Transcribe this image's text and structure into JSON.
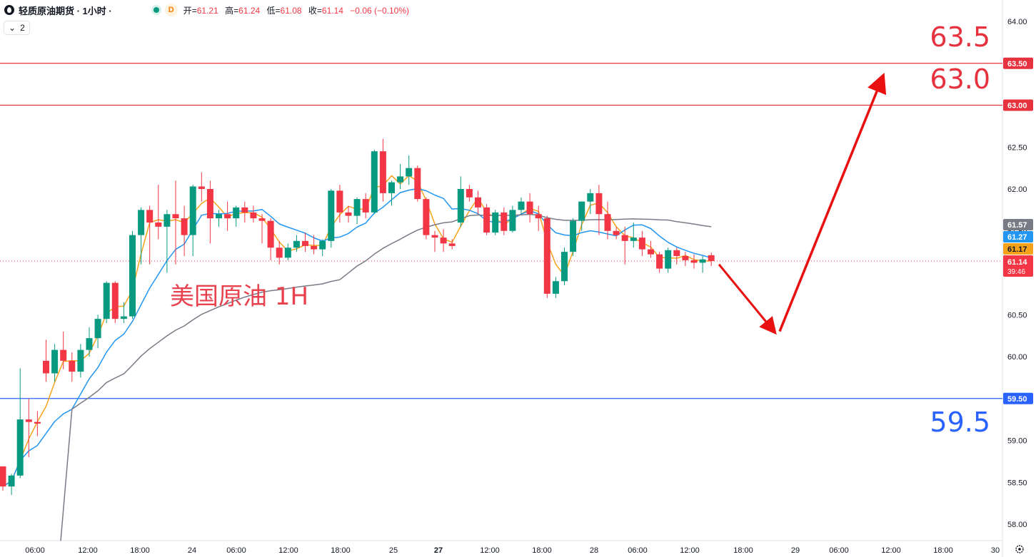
{
  "header": {
    "symbol_title": "轻质原油期货 · 1小时 ·",
    "badge_letter": "D",
    "ohlc": {
      "open_label": "开=",
      "open": "61.21",
      "high_label": "高=",
      "high": "61.24",
      "low_label": "低=",
      "low": "61.08",
      "close_label": "收=",
      "close": "61.14",
      "change": "−0.06 (−0.10%)"
    }
  },
  "indicators_toggle": {
    "count": "2"
  },
  "annotations": {
    "chart_label": "美国原油 1H",
    "target_high": "63.5",
    "target_mid": "63.0",
    "target_low": "59.5"
  },
  "price_tags": {
    "ma_slow": "61.57",
    "ma_mid": "61.27",
    "ma_fast": "61.17",
    "last_price": "61.14",
    "countdown": "39:46",
    "level_6350": "63.50",
    "level_6300": "63.00",
    "level_5950": "59.50"
  },
  "colors": {
    "up": "#089981",
    "down": "#f23645",
    "ma_fast": "#f7a21b",
    "ma_mid": "#2196f3",
    "ma_slow": "#787b86",
    "resistance": "#e5323e",
    "support": "#2962ff",
    "arrow": "#e81010"
  },
  "chart_data": {
    "type": "candlestick",
    "y_axis": {
      "ylim": [
        57.9,
        64.1
      ],
      "ticks": [
        64.0,
        63.5,
        63.0,
        62.5,
        62.0,
        61.5,
        61.0,
        60.5,
        60.0,
        59.5,
        59.0,
        58.5,
        58.0
      ],
      "position": "right"
    },
    "x_axis": {
      "ticks": [
        "06:00",
        "12:00",
        "18:00",
        "24",
        "06:00",
        "12:00",
        "18:00",
        "25",
        "27",
        "12:00",
        "18:00",
        "28",
        "06:00",
        "12:00",
        "18:00",
        "29",
        "06:00",
        "12:00",
        "18:00",
        "30"
      ]
    },
    "horizontal_levels": [
      63.5,
      63.0,
      59.5
    ],
    "ohlc": [
      [
        58.69,
        58.69,
        58.4,
        58.45
      ],
      [
        58.45,
        58.6,
        58.35,
        58.58
      ],
      [
        58.58,
        59.86,
        58.55,
        59.25
      ],
      [
        59.25,
        59.5,
        58.8,
        59.22
      ],
      [
        59.22,
        59.35,
        59.05,
        59.2
      ],
      [
        59.95,
        60.2,
        59.7,
        59.8
      ],
      [
        59.8,
        60.15,
        59.7,
        60.08
      ],
      [
        60.08,
        60.3,
        59.85,
        59.95
      ],
      [
        59.95,
        60.05,
        59.7,
        59.82
      ],
      [
        59.82,
        60.15,
        59.75,
        60.08
      ],
      [
        60.08,
        60.35,
        60.0,
        60.22
      ],
      [
        60.22,
        60.5,
        60.1,
        60.45
      ],
      [
        60.45,
        60.9,
        60.4,
        60.88
      ],
      [
        60.88,
        60.9,
        60.4,
        60.45
      ],
      [
        60.45,
        60.65,
        60.4,
        60.48
      ],
      [
        60.48,
        61.5,
        60.45,
        61.45
      ],
      [
        61.45,
        61.78,
        61.1,
        61.75
      ],
      [
        61.75,
        61.8,
        61.1,
        61.6
      ],
      [
        61.6,
        62.05,
        61.4,
        61.55
      ],
      [
        61.55,
        61.75,
        61.0,
        61.7
      ],
      [
        61.7,
        62.1,
        61.1,
        61.65
      ],
      [
        61.65,
        61.8,
        61.2,
        61.45
      ],
      [
        61.45,
        62.05,
        61.2,
        62.03
      ],
      [
        62.03,
        62.2,
        61.85,
        62.0
      ],
      [
        62.0,
        62.1,
        61.35,
        61.65
      ],
      [
        61.65,
        61.75,
        61.55,
        61.7
      ],
      [
        61.7,
        61.85,
        61.5,
        61.65
      ],
      [
        61.65,
        61.8,
        61.55,
        61.78
      ],
      [
        61.78,
        61.85,
        61.6,
        61.72
      ],
      [
        61.72,
        61.8,
        61.6,
        61.65
      ],
      [
        61.65,
        61.7,
        61.35,
        61.62
      ],
      [
        61.62,
        61.65,
        61.15,
        61.3
      ],
      [
        61.3,
        61.38,
        61.1,
        61.18
      ],
      [
        61.18,
        61.35,
        61.15,
        61.3
      ],
      [
        61.3,
        61.45,
        61.25,
        61.38
      ],
      [
        61.38,
        61.48,
        61.25,
        61.32
      ],
      [
        61.32,
        61.45,
        61.22,
        61.28
      ],
      [
        61.28,
        61.4,
        61.2,
        61.38
      ],
      [
        61.38,
        62.0,
        61.3,
        61.98
      ],
      [
        61.98,
        62.05,
        61.6,
        61.72
      ],
      [
        61.72,
        61.8,
        61.6,
        61.68
      ],
      [
        61.68,
        61.9,
        61.58,
        61.88
      ],
      [
        61.88,
        61.95,
        61.65,
        61.72
      ],
      [
        61.72,
        62.47,
        61.7,
        62.45
      ],
      [
        62.45,
        62.6,
        61.85,
        61.95
      ],
      [
        61.95,
        62.1,
        61.8,
        62.08
      ],
      [
        62.08,
        62.3,
        62.0,
        62.15
      ],
      [
        62.15,
        62.4,
        62.05,
        62.25
      ],
      [
        62.25,
        62.28,
        61.85,
        61.88
      ],
      [
        61.88,
        61.9,
        61.4,
        61.45
      ],
      [
        61.45,
        61.5,
        61.25,
        61.42
      ],
      [
        61.42,
        61.52,
        61.25,
        61.35
      ],
      [
        61.35,
        61.4,
        61.28,
        61.32
      ],
      [
        61.6,
        62.15,
        61.55,
        62.0
      ],
      [
        62.0,
        62.05,
        61.85,
        61.9
      ],
      [
        61.9,
        61.98,
        61.7,
        61.78
      ],
      [
        61.78,
        61.82,
        61.45,
        61.48
      ],
      [
        61.48,
        61.75,
        61.45,
        61.72
      ],
      [
        61.72,
        61.78,
        61.45,
        61.5
      ],
      [
        61.5,
        61.8,
        61.48,
        61.75
      ],
      [
        61.75,
        61.9,
        61.7,
        61.85
      ],
      [
        61.85,
        61.95,
        61.6,
        61.7
      ],
      [
        61.7,
        61.8,
        61.5,
        61.65
      ],
      [
        61.65,
        61.68,
        60.7,
        60.75
      ],
      [
        60.75,
        60.95,
        60.7,
        60.9
      ],
      [
        60.9,
        61.3,
        60.85,
        61.25
      ],
      [
        61.25,
        61.65,
        61.2,
        61.62
      ],
      [
        61.62,
        61.85,
        61.5,
        61.85
      ],
      [
        61.85,
        62.0,
        61.7,
        61.95
      ],
      [
        61.95,
        62.05,
        61.45,
        61.7
      ],
      [
        61.7,
        61.85,
        61.4,
        61.5
      ],
      [
        61.5,
        61.55,
        61.4,
        61.45
      ],
      [
        61.45,
        61.55,
        61.1,
        61.38
      ],
      [
        61.38,
        61.6,
        61.3,
        61.42
      ],
      [
        61.42,
        61.5,
        61.2,
        61.28
      ],
      [
        61.28,
        61.38,
        61.18,
        61.22
      ],
      [
        61.22,
        61.25,
        61.0,
        61.05
      ],
      [
        61.05,
        61.3,
        61.0,
        61.27
      ],
      [
        61.27,
        61.3,
        61.1,
        61.2
      ],
      [
        61.2,
        61.25,
        61.08,
        61.15
      ],
      [
        61.15,
        61.22,
        61.05,
        61.12
      ],
      [
        61.12,
        61.2,
        61.0,
        61.16
      ],
      [
        61.21,
        61.24,
        61.08,
        61.14
      ]
    ],
    "series": [
      {
        "values_from": "ohlc",
        "period": 3
      },
      {
        "values_from": "ohlc",
        "period": 9
      },
      {
        "values_from": "ohlc",
        "period": 40
      }
    ],
    "forecast_path": [
      {
        "x": "27 22:00",
        "y": 61.1
      },
      {
        "x": "28 20:00",
        "y": 60.25
      },
      {
        "x": "29 11:00",
        "y": 63.4
      }
    ]
  }
}
